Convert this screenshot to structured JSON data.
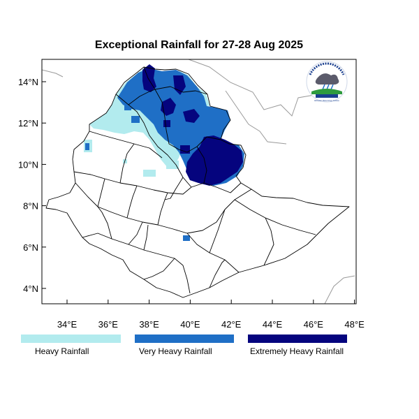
{
  "title": "Exceptional Rainfall for 27-28 Aug 2025",
  "axes": {
    "x_ticks": [
      "34°E",
      "36°E",
      "38°E",
      "40°E",
      "42°E",
      "44°E",
      "46°E",
      "48°E"
    ],
    "y_ticks": [
      "4°N",
      "6°N",
      "8°N",
      "10°N",
      "12°N",
      "14°N"
    ]
  },
  "legend": [
    {
      "label": "Heavy Rainfall",
      "color": "#b2ebee"
    },
    {
      "label": "Very Heavy Rainfall",
      "color": "#1f6fc6"
    },
    {
      "label": "Extremely Heavy Rainfall",
      "color": "#05047e"
    }
  ],
  "logo": {
    "text": "Ethiopian Meteorology Institute"
  },
  "colors": {
    "heavy": "#b2ebee",
    "very_heavy": "#1f6fc6",
    "extreme": "#05047e",
    "boundary": "#000000",
    "neighbor": "#9a9a9a"
  }
}
